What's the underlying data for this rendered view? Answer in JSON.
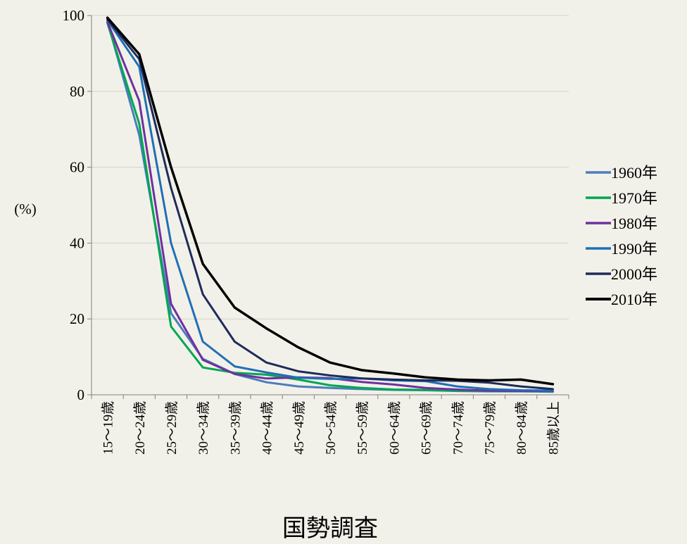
{
  "chart_data": {
    "type": "line",
    "title": "",
    "xlabel": "国勢調査",
    "ylabel": "(%)",
    "ylim": [
      0,
      100
    ],
    "yticks": [
      0,
      20,
      40,
      60,
      80,
      100
    ],
    "grid": true,
    "legend_position": "right",
    "categories": [
      "15〜19歳",
      "20〜24歳",
      "25〜29歳",
      "30〜34歳",
      "35〜39歳",
      "40〜44歳",
      "45〜49歳",
      "50〜54歳",
      "55〜59歳",
      "60〜64歳",
      "65〜69歳",
      "70〜74歳",
      "75〜79歳",
      "80〜84歳",
      "85歳以上"
    ],
    "series": [
      {
        "name": "1960年",
        "color": "#4a7ebb",
        "values": [
          98.5,
          68.5,
          21.5,
          9.5,
          5.5,
          3.3,
          2.2,
          1.8,
          1.5,
          1.3,
          1.2,
          1.0,
          0.9,
          0.9,
          0.8
        ]
      },
      {
        "name": "1970年",
        "color": "#00a651",
        "values": [
          98.0,
          71.5,
          18.0,
          7.2,
          5.8,
          5.3,
          4.0,
          2.5,
          1.8,
          1.4,
          1.3,
          1.1,
          1.0,
          1.0,
          0.9
        ]
      },
      {
        "name": "1980年",
        "color": "#7030a0",
        "values": [
          98.3,
          77.5,
          24.0,
          9.2,
          5.5,
          4.3,
          4.6,
          4.4,
          3.4,
          2.7,
          1.8,
          1.4,
          1.1,
          1.0,
          1.0
        ]
      },
      {
        "name": "1990年",
        "color": "#1f6fb5",
        "values": [
          98.8,
          86.5,
          40.0,
          14.0,
          7.5,
          5.9,
          4.5,
          4.2,
          4.3,
          3.8,
          3.6,
          2.2,
          1.5,
          1.2,
          1.1
        ]
      },
      {
        "name": "2000年",
        "color": "#1f2b5a",
        "values": [
          99.0,
          88.5,
          54.5,
          26.5,
          14.0,
          8.5,
          6.2,
          5.1,
          4.3,
          4.0,
          3.8,
          3.7,
          3.2,
          2.2,
          1.5
        ]
      },
      {
        "name": "2010年",
        "color": "#000000",
        "values": [
          99.4,
          89.8,
          60.0,
          34.5,
          23.0,
          17.5,
          12.5,
          8.5,
          6.5,
          5.6,
          4.6,
          4.0,
          3.8,
          4.0,
          2.8
        ]
      }
    ]
  }
}
